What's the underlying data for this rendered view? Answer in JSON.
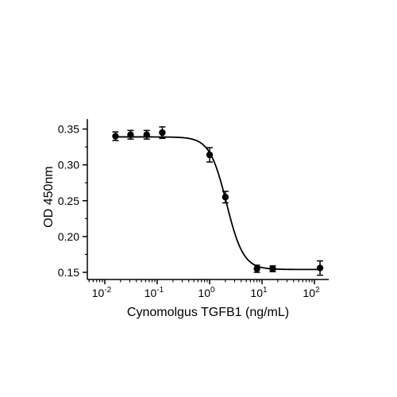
{
  "chart_data": {
    "type": "scatter",
    "title": "",
    "xlabel": "Cynomolgus TGFB1 (ng/mL)",
    "ylabel": "OD 450nm",
    "x_scale": "log",
    "xlim": [
      0.005,
      160
    ],
    "ylim": [
      0.15,
      0.355
    ],
    "x_ticks": [
      0.01,
      0.1,
      1,
      10,
      100
    ],
    "x_tick_labels": [
      {
        "base": "10",
        "exp": "-2"
      },
      {
        "base": "10",
        "exp": "-1"
      },
      {
        "base": "10",
        "exp": "0"
      },
      {
        "base": "10",
        "exp": "1"
      },
      {
        "base": "10",
        "exp": "2"
      }
    ],
    "y_ticks": [
      0.15,
      0.2,
      0.25,
      0.3,
      0.35
    ],
    "y_tick_labels": [
      "0.15",
      "0.20",
      "0.25",
      "0.30",
      "0.35"
    ],
    "grid": false,
    "legend": "none",
    "points": [
      {
        "x": 0.016,
        "y": 0.34,
        "err": 0.006
      },
      {
        "x": 0.031,
        "y": 0.342,
        "err": 0.006
      },
      {
        "x": 0.063,
        "y": 0.342,
        "err": 0.006
      },
      {
        "x": 0.125,
        "y": 0.345,
        "err": 0.008
      },
      {
        "x": 1.0,
        "y": 0.314,
        "err": 0.01
      },
      {
        "x": 2.0,
        "y": 0.255,
        "err": 0.008
      },
      {
        "x": 8.0,
        "y": 0.155,
        "err": 0.005
      },
      {
        "x": 16.0,
        "y": 0.155,
        "err": 0.004
      },
      {
        "x": 128.0,
        "y": 0.156,
        "err": 0.01
      }
    ],
    "fit": {
      "model": "4PL",
      "top": 0.339,
      "bottom": 0.154,
      "ec50": 2.1,
      "hill": 2.7
    },
    "colors": {
      "marker": "#000000",
      "line": "#000000",
      "axis": "#000000"
    }
  }
}
